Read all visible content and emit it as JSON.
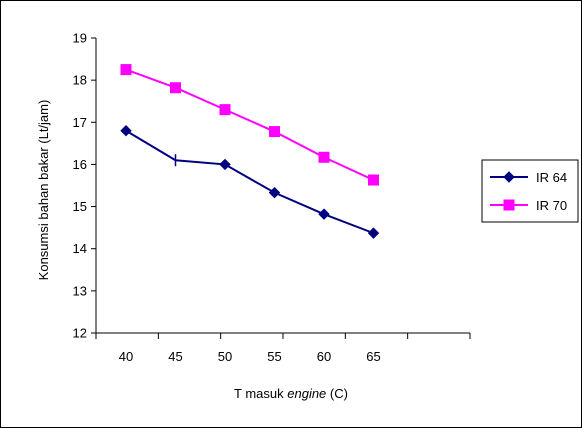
{
  "chart_data": {
    "type": "line",
    "x": [
      40,
      45,
      50,
      55,
      60,
      65
    ],
    "series": [
      {
        "name": "IR 64",
        "values": [
          16.8,
          16.1,
          16.0,
          15.33,
          14.82,
          14.37
        ],
        "color": "#000080",
        "marker": "diamond"
      },
      {
        "name": "IR 70",
        "values": [
          18.25,
          17.82,
          17.3,
          16.78,
          16.17,
          15.63
        ],
        "color": "#FF00FF",
        "marker": "square"
      }
    ],
    "ylabel": "Konsumsi bahan bakar (Lt/jam)",
    "xlabel_prefix": "T masuk ",
    "xlabel_italic": "engine",
    "xlabel_suffix": " (C)",
    "ylim": [
      12,
      19
    ],
    "yticks": [
      12,
      13,
      14,
      15,
      16,
      17,
      18,
      19
    ],
    "legend_position": "right",
    "grid": false
  }
}
